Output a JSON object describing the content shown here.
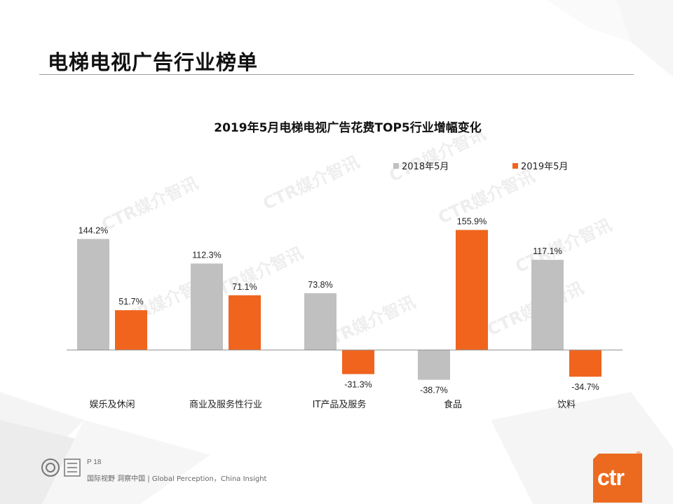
{
  "page": {
    "title": "电梯电视广告行业榜单",
    "footer_page": "P 18",
    "footer_slogan": "国际视野  洞察中国 |  Global Perception，China Insight",
    "brand_logo_text": "ctr",
    "registered_mark": "®"
  },
  "colors": {
    "series_2018": "#c0c0c0",
    "series_2019": "#f0641e",
    "axis": "#8c8c8c",
    "brand": "#ec6a1f"
  },
  "chart_data": {
    "type": "bar",
    "title": "2019年5月电梯电视广告花费TOP5行业增幅变化",
    "categories": [
      "娱乐及休闲",
      "商业及服务性行业",
      "IT产品及服务",
      "食品",
      "饮料"
    ],
    "series": [
      {
        "name": "2018年5月",
        "values": [
          144.2,
          112.3,
          73.8,
          -38.7,
          117.1
        ],
        "labels": [
          "144.2%",
          "112.3%",
          "73.8%",
          "-38.7%",
          "117.1%"
        ]
      },
      {
        "name": "2019年5月",
        "values": [
          51.7,
          71.1,
          -31.3,
          155.9,
          -34.7
        ],
        "labels": [
          "51.7%",
          "71.1%",
          "-31.3%",
          "155.9%",
          "-34.7%"
        ]
      }
    ],
    "unit": "%",
    "legend_position": "top-right",
    "grid": false,
    "watermark": "CTR媒介智讯"
  }
}
